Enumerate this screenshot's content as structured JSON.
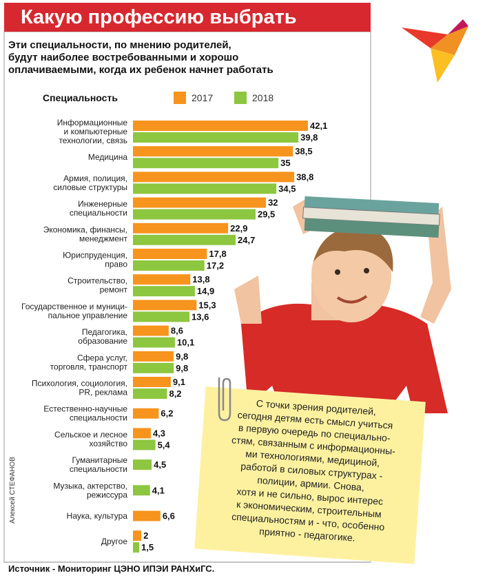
{
  "chart_data": {
    "type": "bar",
    "title": "Какую профессию выбрать",
    "subtitle": [
      "Эти специальности, по мнению родителей,",
      "будут наиболее востребованными и хорошо",
      "оплачиваемыми, когда их ребенок начнет работать"
    ],
    "legend_title": "Специальность",
    "categories": [
      [
        "Информационные",
        "и компьютерные",
        "технологии, связь"
      ],
      [
        "Медицина"
      ],
      [
        "Армия, полиция,",
        "силовые структуры"
      ],
      [
        "Инженерные",
        "специальности"
      ],
      [
        "Экономика, финансы,",
        "менеджмент"
      ],
      [
        "Юриспруденция,",
        "право"
      ],
      [
        "Строительство,",
        "ремонт"
      ],
      [
        "Государственное и муници-",
        "пальное управление"
      ],
      [
        "Педагогика,",
        "образование"
      ],
      [
        "Сфера услуг,",
        "торговля, транспорт"
      ],
      [
        "Психология, социология,",
        "PR, реклама"
      ],
      [
        "Естественно-научные",
        "специальности"
      ],
      [
        "Сельское и лесное",
        "хозяйство"
      ],
      [
        "Гуманитарные",
        "специальности"
      ],
      [
        "Музыка, актерство,",
        "режиссура"
      ],
      [
        "Наука, культура"
      ],
      [
        "Другое"
      ]
    ],
    "series": [
      {
        "name": "2017",
        "color": "#f7941d",
        "values": [
          42.1,
          38.5,
          38.8,
          32,
          22.9,
          17.8,
          13.8,
          15.3,
          8.6,
          9.8,
          9.1,
          6.2,
          4.3,
          null,
          null,
          6.6,
          2
        ],
        "value_labels": [
          "42,1",
          "38,5",
          "38,8",
          "32",
          "22,9",
          "17,8",
          "13,8",
          "15,3",
          "8,6",
          "9,8",
          "9,1",
          "6,2",
          "4,3",
          null,
          null,
          "6,6",
          "2"
        ]
      },
      {
        "name": "2018",
        "color": "#8dc63f",
        "values": [
          39.8,
          35,
          34.5,
          29.5,
          24.7,
          17.2,
          14.9,
          13.6,
          10.1,
          9.8,
          8.2,
          null,
          5.4,
          4.5,
          4.1,
          null,
          1.5
        ],
        "value_labels": [
          "39,8",
          "35",
          "34,5",
          "29,5",
          "24,7",
          "17,2",
          "14,9",
          "13,6",
          "10,1",
          "9,8",
          "8,2",
          null,
          "5,4",
          "4,5",
          "4,1",
          null,
          "1,5"
        ]
      }
    ],
    "callout": [
      "С точки зрения родителей,",
      "сегодня детям есть смысл учиться",
      "в первую очередь по специально-",
      "стям, связанным с информационны-",
      "ми технологиями, медициной,",
      "работой в силовых структурах -",
      "полиции, армии. Снова,",
      "хотя и не сильно, вырос интерес",
      "к экономическим, строительным",
      "специальностям и - что, особенно",
      "приятно - педагогике."
    ],
    "source": "Источник - Мониторинг ЦЭНО ИПЭИ РАНХиГС.",
    "author": "Алексей СТЕФАНОВ"
  }
}
